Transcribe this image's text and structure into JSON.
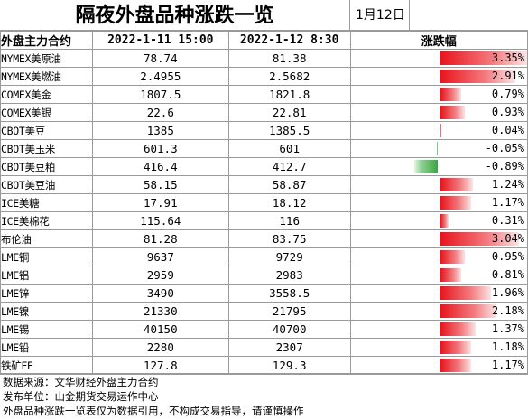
{
  "title": "隔夜外盘品种涨跌一览",
  "date": "1月12日",
  "headers": {
    "name": "外盘主力合约",
    "col1": "2022-1-11  15:00",
    "col2": "2022-1-12  8:30",
    "change": "涨跌幅"
  },
  "rows": [
    {
      "name": "NYMEX美原油",
      "p1": "78.74",
      "p2": "81.38",
      "change": "3.35%",
      "pct": 3.35
    },
    {
      "name": "NYMEX美燃油",
      "p1": "2.4955",
      "p2": "2.5682",
      "change": "2.91%",
      "pct": 2.91
    },
    {
      "name": "COMEX美金",
      "p1": "1807.5",
      "p2": "1821.8",
      "change": "0.79%",
      "pct": 0.79
    },
    {
      "name": "COMEX美银",
      "p1": "22.6",
      "p2": "22.81",
      "change": "0.93%",
      "pct": 0.93
    },
    {
      "name": "CBOT美豆",
      "p1": "1385",
      "p2": "1385.5",
      "change": "0.04%",
      "pct": 0.04
    },
    {
      "name": "CBOT美玉米",
      "p1": "601.3",
      "p2": "601",
      "change": "-0.05%",
      "pct": -0.05
    },
    {
      "name": "CBOT美豆粕",
      "p1": "416.4",
      "p2": "412.7",
      "change": "-0.89%",
      "pct": -0.89
    },
    {
      "name": "CBOT美豆油",
      "p1": "58.15",
      "p2": "58.87",
      "change": "1.24%",
      "pct": 1.24
    },
    {
      "name": "ICE美糖",
      "p1": "17.91",
      "p2": "18.12",
      "change": "1.17%",
      "pct": 1.17
    },
    {
      "name": "ICE美棉花",
      "p1": "115.64",
      "p2": "116",
      "change": "0.31%",
      "pct": 0.31
    },
    {
      "name": "布伦油",
      "p1": "81.28",
      "p2": "83.75",
      "change": "3.04%",
      "pct": 3.04
    },
    {
      "name": "LME铜",
      "p1": "9637",
      "p2": "9729",
      "change": "0.95%",
      "pct": 0.95
    },
    {
      "name": "LME铝",
      "p1": "2959",
      "p2": "2983",
      "change": "0.81%",
      "pct": 0.81
    },
    {
      "name": "LME锌",
      "p1": "3490",
      "p2": "3558.5",
      "change": "1.96%",
      "pct": 1.96
    },
    {
      "name": "LME镍",
      "p1": "21330",
      "p2": "21795",
      "change": "2.18%",
      "pct": 2.18
    },
    {
      "name": "LME锡",
      "p1": "40150",
      "p2": "40700",
      "change": "1.37%",
      "pct": 1.37
    },
    {
      "name": "LME铅",
      "p1": "2280",
      "p2": "2307",
      "change": "1.18%",
      "pct": 1.18
    },
    {
      "name": "铁矿FE",
      "p1": "127.8",
      "p2": "129.3",
      "change": "1.17%",
      "pct": 1.17
    }
  ],
  "footer": {
    "source": "数据来源：文华财经外盘主力合约",
    "publisher": "发布单位：山金期货交易运作中心",
    "disclaimer": "外盘品种涨跌一览表仅为数据引用，不构成交易指导，请谨慎操作"
  },
  "colors": {
    "positive_bar": "#e8141c",
    "negative_bar": "#3aa53f",
    "grid": "#9a9a9a"
  }
}
